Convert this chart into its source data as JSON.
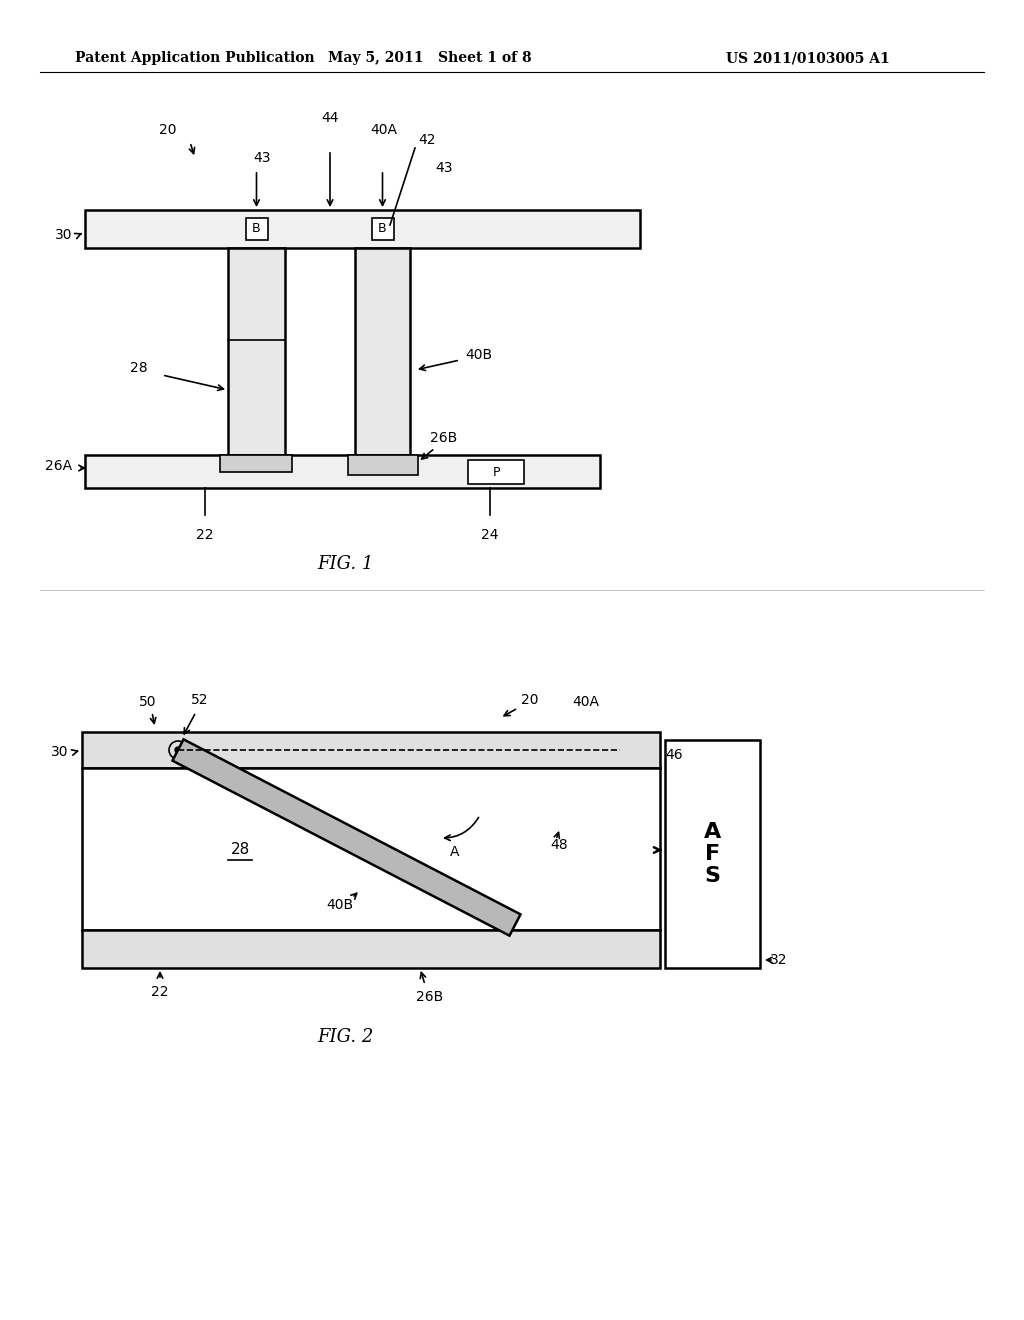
{
  "bg_color": "#ffffff",
  "line_color": "#000000",
  "header_text": "Patent Application Publication",
  "header_date": "May 5, 2011   Sheet 1 of 8",
  "header_patent": "US 2011/0103005 A1",
  "fig1_label": "FIG. 1",
  "fig2_label": "FIG. 2"
}
